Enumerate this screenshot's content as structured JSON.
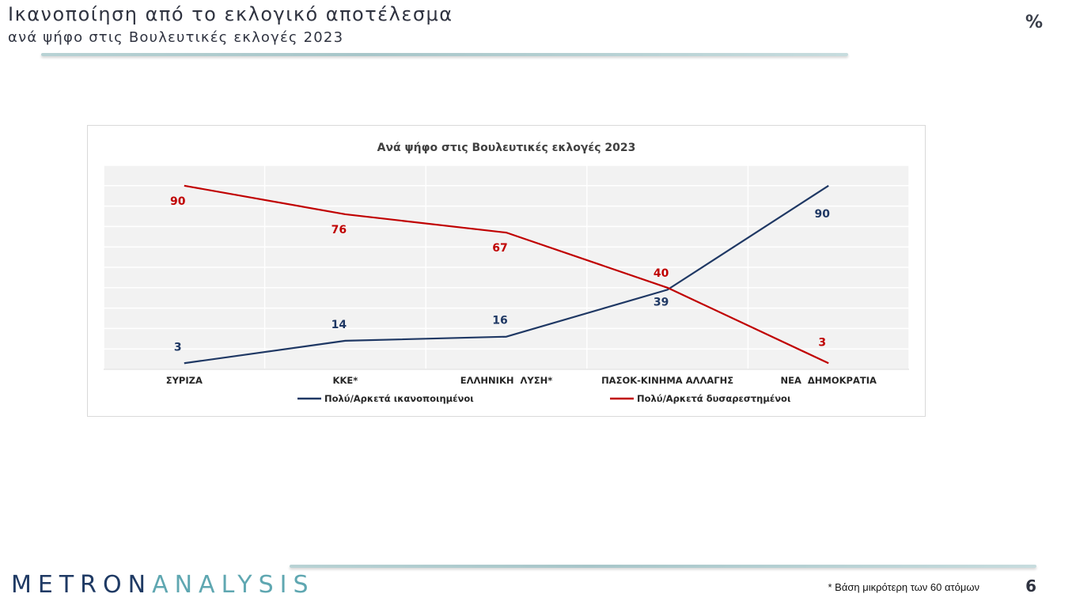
{
  "header": {
    "title": "Ικανοποίηση από το εκλογικό αποτέλεσμα",
    "subtitle": "ανά ψήφο στις Βουλευτικές εκλογές 2023",
    "unit": "%"
  },
  "chart_data": {
    "type": "line",
    "title": "Ανά ψήφο στις Βουλευτικές εκλογές 2023",
    "categories": [
      "ΣΥΡΙΖΑ",
      "ΚΚΕ*",
      "ΕΛΛΗΝΙΚΗ  ΛΥΣΗ*",
      "ΠΑΣΟΚ-ΚΙΝΗΜΑ ΑΛΛΑΓΗΣ",
      "ΝΕΑ  ΔΗΜΟΚΡΑΤΙΑ"
    ],
    "series": [
      {
        "name": "Πολύ/Αρκετά ικανοποιημένοι",
        "values": [
          3,
          14,
          16,
          39,
          90
        ],
        "color": "#1f3864"
      },
      {
        "name": "Πολύ/Αρκετά δυσαρεστημένοι",
        "values": [
          90,
          76,
          67,
          40,
          3
        ],
        "color": "#c00000"
      }
    ],
    "ylim": [
      0,
      100
    ],
    "grid": true,
    "legend": "bottom",
    "xlabel": "",
    "ylabel": ""
  },
  "footer": {
    "logo_part1": "METRON",
    "logo_part2": "ANALYSIS",
    "footnote": "* Βάση μικρότερη των 60 ατόμων",
    "page_number": "6"
  }
}
